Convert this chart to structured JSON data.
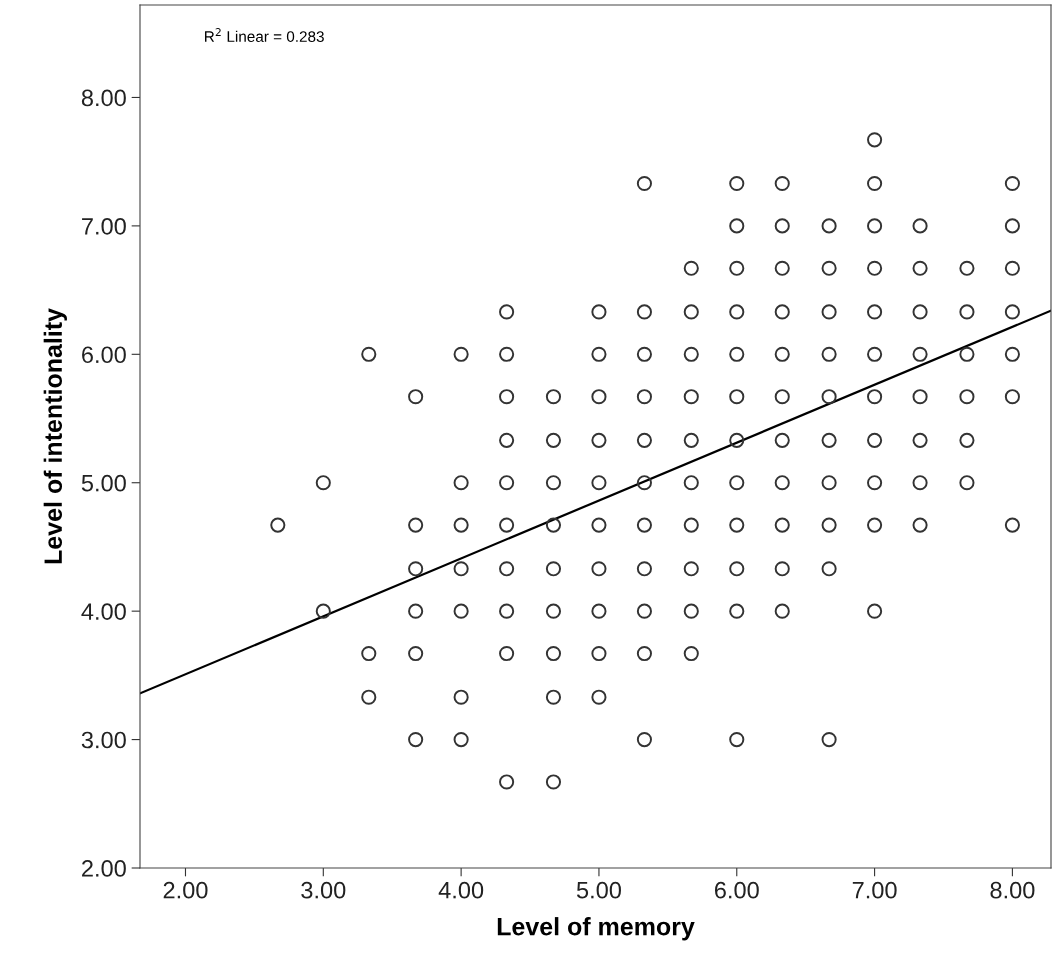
{
  "chart_data": {
    "type": "scatter",
    "xlabel": "Level of memory",
    "ylabel": "Level of intentionality",
    "annotations": [
      "R$^{2}$ Linear = 0.283"
    ],
    "xlim": [
      1.67,
      8.28
    ],
    "ylim": [
      2.0,
      8.72
    ],
    "xticks": [
      {
        "value": 2,
        "label": "2.00"
      },
      {
        "value": 3,
        "label": "3.00"
      },
      {
        "value": 4,
        "label": "4.00"
      },
      {
        "value": 5,
        "label": "5.00"
      },
      {
        "value": 6,
        "label": "6.00"
      },
      {
        "value": 7,
        "label": "7.00"
      },
      {
        "value": 8,
        "label": "8.00"
      }
    ],
    "yticks": [
      {
        "value": 2,
        "label": "2.00"
      },
      {
        "value": 3,
        "label": "3.00"
      },
      {
        "value": 4,
        "label": "4.00"
      },
      {
        "value": 5,
        "label": "5.00"
      },
      {
        "value": 6,
        "label": "6.00"
      },
      {
        "value": 7,
        "label": "7.00"
      },
      {
        "value": 8,
        "label": "8.00"
      }
    ],
    "grid": false,
    "marker": "circle",
    "series": [
      {
        "color": "#333333",
        "x": [
          2.67,
          3.0,
          3.0,
          3.33,
          3.33,
          3.33,
          3.67,
          3.67,
          3.67,
          3.67,
          3.67,
          3.67,
          4.0,
          4.0,
          4.0,
          4.0,
          4.0,
          4.0,
          4.0,
          4.33,
          4.33,
          4.33,
          4.33,
          4.33,
          4.33,
          4.33,
          4.33,
          4.33,
          4.33,
          4.67,
          4.67,
          4.67,
          4.67,
          4.67,
          4.67,
          4.67,
          4.67,
          4.67,
          5.0,
          5.0,
          5.0,
          5.0,
          5.0,
          5.0,
          5.0,
          5.0,
          5.0,
          5.0,
          5.33,
          5.33,
          5.33,
          5.33,
          5.33,
          5.33,
          5.33,
          5.33,
          5.33,
          5.33,
          5.33,
          5.67,
          5.67,
          5.67,
          5.67,
          5.67,
          5.67,
          5.67,
          5.67,
          5.67,
          5.67,
          6.0,
          6.0,
          6.0,
          6.0,
          6.0,
          6.0,
          6.0,
          6.0,
          6.0,
          6.0,
          6.0,
          6.0,
          6.33,
          6.33,
          6.33,
          6.33,
          6.33,
          6.33,
          6.33,
          6.33,
          6.33,
          6.33,
          6.33,
          6.67,
          6.67,
          6.67,
          6.67,
          6.67,
          6.67,
          6.67,
          6.67,
          6.67,
          6.67,
          7.0,
          7.0,
          7.0,
          7.0,
          7.0,
          7.0,
          7.0,
          7.0,
          7.0,
          7.0,
          7.0,
          7.33,
          7.33,
          7.33,
          7.33,
          7.33,
          7.33,
          7.33,
          7.33,
          7.67,
          7.67,
          7.67,
          7.67,
          7.67,
          7.67,
          8.0,
          8.0,
          8.0,
          8.0,
          8.0,
          8.0,
          8.0
        ],
        "values": [
          4.67,
          5.0,
          4.0,
          6.0,
          3.67,
          3.33,
          5.67,
          4.67,
          4.33,
          4.0,
          3.67,
          3.0,
          6.0,
          5.0,
          4.67,
          4.33,
          4.0,
          3.33,
          3.0,
          6.33,
          6.0,
          5.67,
          5.33,
          5.0,
          4.67,
          4.33,
          4.0,
          3.67,
          2.67,
          5.67,
          5.33,
          5.0,
          4.67,
          4.33,
          4.0,
          3.67,
          3.33,
          2.67,
          6.33,
          6.0,
          5.67,
          5.33,
          5.0,
          4.67,
          4.33,
          4.0,
          3.67,
          3.33,
          7.33,
          6.33,
          6.0,
          5.67,
          5.33,
          5.0,
          4.67,
          4.33,
          4.0,
          3.67,
          3.0,
          6.67,
          6.33,
          6.0,
          5.67,
          5.33,
          5.0,
          4.67,
          4.33,
          4.0,
          3.67,
          7.33,
          7.0,
          6.67,
          6.33,
          6.0,
          5.67,
          5.33,
          5.0,
          4.67,
          4.33,
          4.0,
          3.0,
          7.33,
          7.0,
          6.67,
          6.33,
          6.0,
          5.67,
          5.33,
          5.0,
          4.67,
          4.33,
          4.0,
          7.0,
          6.67,
          6.33,
          6.0,
          5.67,
          5.33,
          5.0,
          4.67,
          4.33,
          3.0,
          7.67,
          7.33,
          7.0,
          6.67,
          6.33,
          6.0,
          5.67,
          5.33,
          5.0,
          4.67,
          4.0,
          7.0,
          6.67,
          6.33,
          6.0,
          5.67,
          5.33,
          5.0,
          4.67,
          6.67,
          6.33,
          6.0,
          5.67,
          5.33,
          5.0,
          7.33,
          7.0,
          6.67,
          6.33,
          6.0,
          5.67,
          4.67
        ]
      },
      {
        "type": "line",
        "marker": "none",
        "color": "#000000",
        "x": [
          1.67,
          8.28
        ],
        "values": [
          3.36,
          6.34
        ]
      }
    ]
  }
}
